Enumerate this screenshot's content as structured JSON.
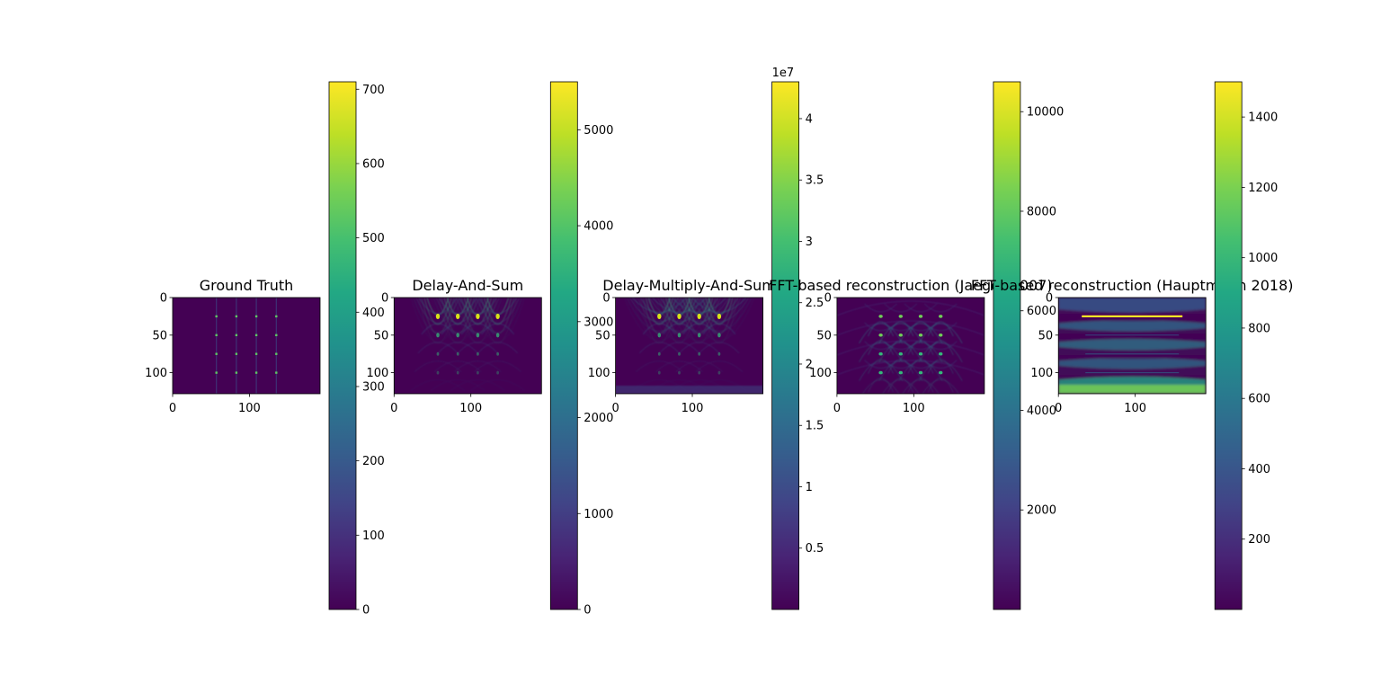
{
  "chart_data": [
    {
      "type": "heatmap",
      "title": "Ground Truth",
      "pattern": "points",
      "x_ticks": [
        0,
        100
      ],
      "y_ticks": [
        0,
        50,
        100
      ],
      "image_extent": {
        "x": [
          0,
          192
        ],
        "y": [
          0,
          128
        ]
      },
      "colorbar": {
        "range": [
          0,
          710
        ],
        "ticks": [
          0,
          100,
          200,
          300,
          400,
          500,
          600,
          700
        ],
        "offset_label": ""
      }
    },
    {
      "type": "heatmap",
      "title": "Delay-And-Sum",
      "pattern": "arcs",
      "x_ticks": [
        0,
        100
      ],
      "y_ticks": [
        0,
        50,
        100
      ],
      "image_extent": {
        "x": [
          0,
          192
        ],
        "y": [
          0,
          128
        ]
      },
      "colorbar": {
        "range": [
          0,
          5500
        ],
        "ticks": [
          0,
          1000,
          2000,
          3000,
          4000,
          5000
        ],
        "offset_label": ""
      }
    },
    {
      "type": "heatmap",
      "title": "Delay-Multiply-And-Sum",
      "pattern": "arcs-dense",
      "x_ticks": [
        0,
        100
      ],
      "y_ticks": [
        0,
        50,
        100
      ],
      "image_extent": {
        "x": [
          0,
          192
        ],
        "y": [
          0,
          128
        ]
      },
      "colorbar": {
        "range": [
          0.0,
          4.3
        ],
        "ticks": [
          0.5,
          1.0,
          1.5,
          2.0,
          2.5,
          3.0,
          3.5,
          4.0
        ],
        "offset_label": "1e7"
      }
    },
    {
      "type": "heatmap",
      "title": "FFT-based reconstruction (Jaeger 2007)",
      "pattern": "lattice",
      "x_ticks": [
        0,
        100
      ],
      "y_ticks": [
        0,
        50,
        100
      ],
      "image_extent": {
        "x": [
          0,
          192
        ],
        "y": [
          0,
          128
        ]
      },
      "colorbar": {
        "range": [
          0,
          10600
        ],
        "ticks": [
          2000,
          4000,
          6000,
          8000,
          10000
        ],
        "offset_label": ""
      }
    },
    {
      "type": "heatmap",
      "title": "FFT-based reconstruction (Hauptmann 2018)",
      "pattern": "bands",
      "x_ticks": [
        0,
        100
      ],
      "y_ticks": [
        0,
        50,
        100
      ],
      "image_extent": {
        "x": [
          0,
          192
        ],
        "y": [
          0,
          128
        ]
      },
      "colorbar": {
        "range": [
          0,
          1500
        ],
        "ticks": [
          200,
          400,
          600,
          800,
          1000,
          1200,
          1400
        ],
        "offset_label": ""
      }
    }
  ]
}
